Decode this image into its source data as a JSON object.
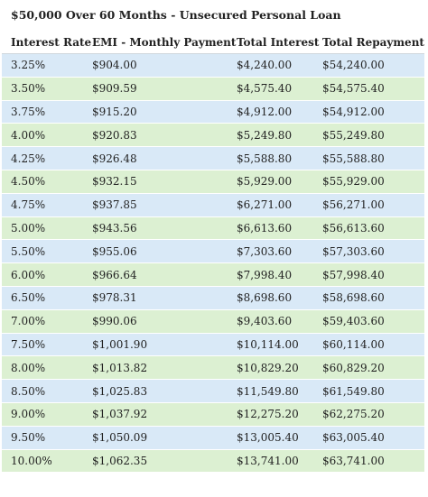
{
  "caption": "$50,000 Over 60 Months - Unsecured Personal Loan",
  "headers": [
    "Interest Rate",
    "EMI - Monthly Payment",
    "Total Interest",
    "Total Repayment"
  ],
  "rows": [
    [
      "3.25%",
      "$904.00",
      "$4,240.00",
      "$54,240.00"
    ],
    [
      "3.50%",
      "$909.59",
      "$4,575.40",
      "$54,575.40"
    ],
    [
      "3.75%",
      "$915.20",
      "$4,912.00",
      "$54,912.00"
    ],
    [
      "4.00%",
      "$920.83",
      "$5,249.80",
      "$55,249.80"
    ],
    [
      "4.25%",
      "$926.48",
      "$5,588.80",
      "$55,588.80"
    ],
    [
      "4.50%",
      "$932.15",
      "$5,929.00",
      "$55,929.00"
    ],
    [
      "4.75%",
      "$937.85",
      "$6,271.00",
      "$56,271.00"
    ],
    [
      "5.00%",
      "$943.56",
      "$6,613.60",
      "$56,613.60"
    ],
    [
      "5.50%",
      "$955.06",
      "$7,303.60",
      "$57,303.60"
    ],
    [
      "6.00%",
      "$966.64",
      "$7,998.40",
      "$57,998.40"
    ],
    [
      "6.50%",
      "$978.31",
      "$8,698.60",
      "$58,698.60"
    ],
    [
      "7.00%",
      "$990.06",
      "$9,403.60",
      "$59,403.60"
    ],
    [
      "7.50%",
      "$1,001.90",
      "$10,114.00",
      "$60,114.00"
    ],
    [
      "8.00%",
      "$1,013.82",
      "$10,829.20",
      "$60,829.20"
    ],
    [
      "8.50%",
      "$1,025.83",
      "$11,549.80",
      "$61,549.80"
    ],
    [
      "9.00%",
      "$1,037.92",
      "$12,275.20",
      "$62,275.20"
    ],
    [
      "9.50%",
      "$1,050.09",
      "$13,005.40",
      "$63,005.40"
    ],
    [
      "10.00%",
      "$1,062.35",
      "$13,741.00",
      "$63,741.00"
    ]
  ],
  "colors": {
    "row_blue": "#d9e9f7",
    "row_green": "#dcf0d2"
  }
}
